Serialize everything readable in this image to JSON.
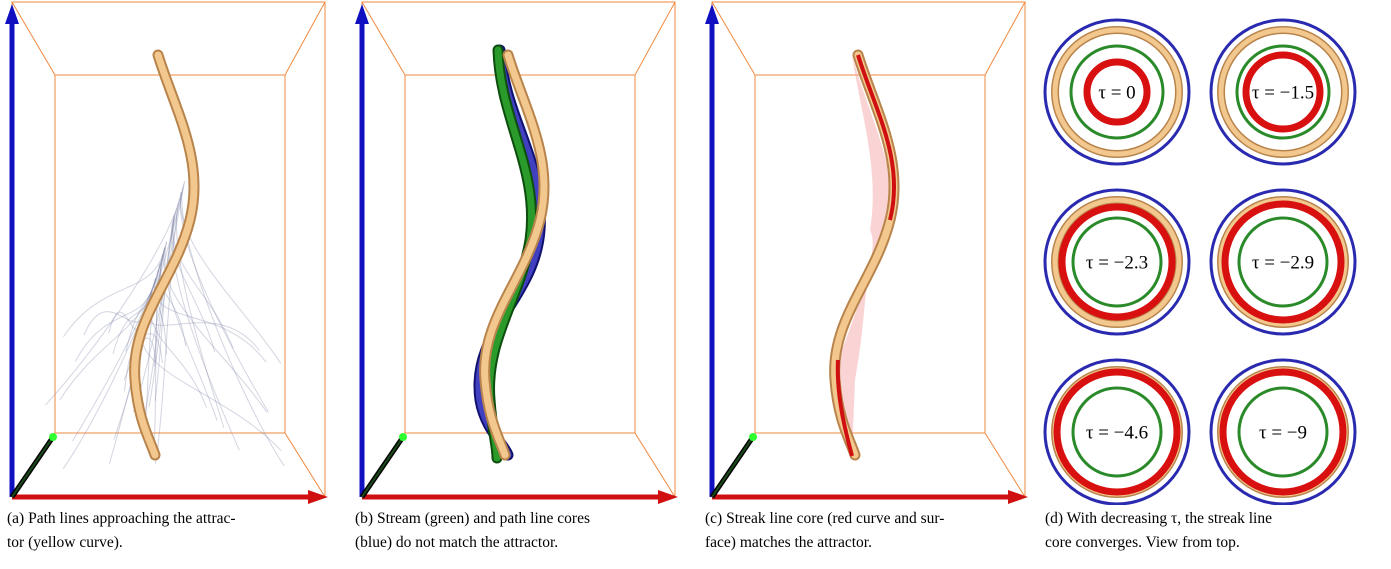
{
  "panels": [
    {
      "caption": [
        "(a) Path lines approaching the attrac-",
        "tor (yellow curve)."
      ]
    },
    {
      "caption": [
        "(b) Stream (green) and path line cores",
        "(blue) do not match the attractor."
      ]
    },
    {
      "caption": [
        "(c) Streak line core (red curve and sur-",
        "face) matches the attractor."
      ]
    },
    {
      "caption": [
        "(d) With decreasing τ, the streak line",
        "core converges. View from top."
      ],
      "labels": [
        "τ = 0",
        "τ = −1.5",
        "τ = −2.3",
        "τ = −2.9",
        "τ = −4.6",
        "τ = −9"
      ]
    }
  ]
}
